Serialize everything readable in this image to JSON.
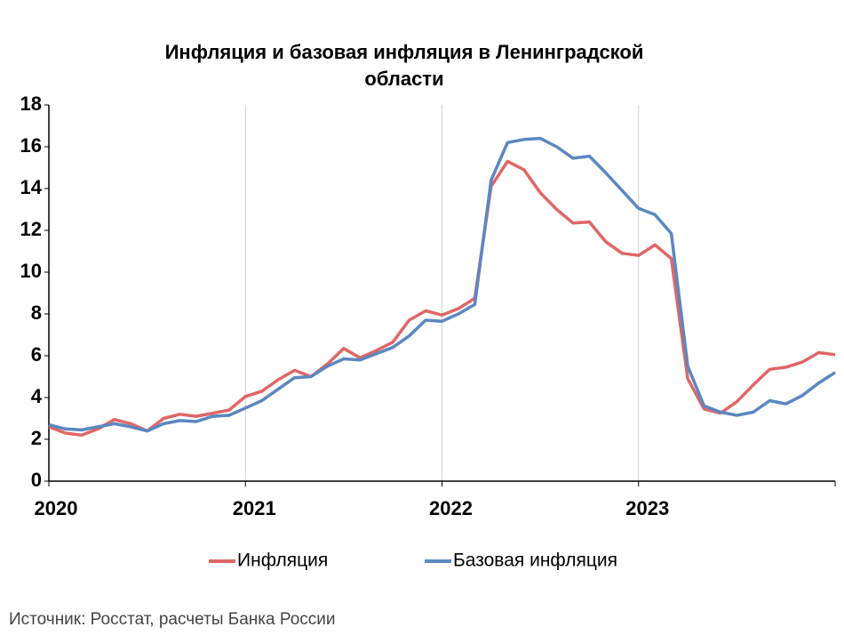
{
  "chart_data": {
    "type": "line",
    "title": "Инфляция и базовая инфляция в Ленинградской области",
    "source": "Источник: Росстат, расчеты Банка России",
    "categories": [
      "2020",
      null,
      null,
      null,
      null,
      null,
      null,
      null,
      null,
      null,
      null,
      null,
      "2021",
      null,
      null,
      null,
      null,
      null,
      null,
      null,
      null,
      null,
      null,
      null,
      "2022",
      null,
      null,
      null,
      null,
      null,
      null,
      null,
      null,
      null,
      null,
      null,
      "2023",
      null,
      null,
      null,
      null,
      null,
      null,
      null,
      null,
      null,
      null,
      null,
      null
    ],
    "series": [
      {
        "name": "Инфляция",
        "color": "#e06666",
        "values": [
          2.6,
          2.3,
          2.2,
          2.5,
          2.95,
          2.75,
          2.4,
          3.0,
          3.2,
          3.1,
          3.25,
          3.4,
          4.05,
          4.3,
          4.85,
          5.3,
          5.0,
          5.6,
          6.35,
          5.9,
          6.25,
          6.65,
          7.7,
          8.15,
          7.95,
          8.25,
          8.75,
          14.1,
          15.3,
          14.9,
          13.8,
          13.0,
          12.35,
          12.4,
          11.45,
          10.9,
          10.8,
          11.3,
          10.65,
          4.9,
          3.45,
          3.25,
          3.8,
          4.6,
          5.35,
          5.45,
          5.7,
          6.15,
          6.05
        ]
      },
      {
        "name": "Базовая инфляция",
        "color": "#5b87c1",
        "values": [
          2.7,
          2.5,
          2.45,
          2.6,
          2.75,
          2.6,
          2.4,
          2.75,
          2.9,
          2.85,
          3.1,
          3.15,
          3.5,
          3.85,
          4.4,
          4.95,
          5.0,
          5.5,
          5.85,
          5.8,
          6.1,
          6.4,
          6.95,
          7.7,
          7.65,
          8.0,
          8.45,
          14.4,
          16.2,
          16.35,
          16.4,
          16.0,
          15.45,
          15.55,
          14.75,
          13.9,
          13.05,
          12.75,
          11.85,
          5.5,
          3.6,
          3.3,
          3.15,
          3.3,
          3.85,
          3.7,
          4.1,
          4.7,
          5.2
        ]
      }
    ],
    "ylim": [
      0,
      18
    ],
    "yticks": [
      0,
      2,
      4,
      6,
      8,
      10,
      12,
      14,
      16,
      18
    ],
    "grid": true,
    "legend": "bottom"
  }
}
